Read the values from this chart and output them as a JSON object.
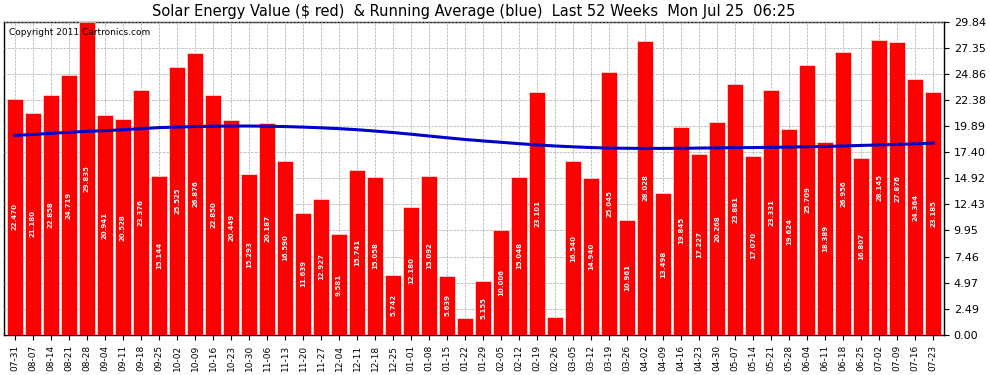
{
  "title": "Solar Energy Value ($ red)  & Running Average (blue)  Last 52 Weeks  Mon Jul 25  06:25",
  "copyright": "Copyright 2011 Cartronics.com",
  "bar_color": "#ff0000",
  "line_color": "#0000cc",
  "background_color": "#ffffff",
  "grid_color": "#aaaaaa",
  "bar_edge_color": "#ffffff",
  "ylim": [
    0,
    29.84
  ],
  "yticks": [
    0.0,
    2.49,
    4.97,
    7.46,
    9.95,
    12.43,
    14.92,
    17.4,
    19.89,
    22.38,
    24.86,
    27.35,
    29.84
  ],
  "categories": [
    "07-31",
    "08-07",
    "08-14",
    "08-21",
    "08-28",
    "09-04",
    "09-11",
    "09-18",
    "09-25",
    "10-02",
    "10-09",
    "10-16",
    "10-23",
    "10-30",
    "11-06",
    "11-13",
    "11-20",
    "11-27",
    "12-04",
    "12-11",
    "12-18",
    "12-25",
    "01-01",
    "01-08",
    "01-15",
    "01-22",
    "01-29",
    "02-05",
    "02-12",
    "02-19",
    "02-26",
    "03-05",
    "03-12",
    "03-19",
    "03-26",
    "04-02",
    "04-09",
    "04-16",
    "04-23",
    "04-30",
    "05-07",
    "05-14",
    "05-21",
    "05-28",
    "06-04",
    "06-11",
    "06-18",
    "06-25",
    "07-02",
    "07-09",
    "07-16",
    "07-23"
  ],
  "values": [
    22.47,
    21.18,
    22.858,
    24.719,
    29.835,
    20.941,
    20.528,
    23.376,
    15.144,
    25.525,
    26.876,
    22.85,
    20.449,
    15.293,
    20.187,
    16.59,
    11.639,
    12.927,
    9.581,
    15.741,
    15.058,
    5.742,
    12.18,
    15.092,
    5.639,
    1.577,
    5.155,
    10.006,
    15.048,
    23.101,
    1.707,
    16.54,
    14.94,
    25.045,
    10.961,
    28.028,
    13.498,
    19.845,
    17.227,
    20.268,
    23.881,
    17.07,
    23.331,
    19.624,
    25.709,
    18.389,
    26.956,
    16.807,
    28.145,
    27.876,
    24.364,
    23.185
  ],
  "running_avg": [
    19.0,
    19.1,
    19.2,
    19.3,
    19.4,
    19.45,
    19.55,
    19.65,
    19.75,
    19.8,
    19.85,
    19.88,
    19.9,
    19.9,
    19.88,
    19.85,
    19.8,
    19.73,
    19.65,
    19.55,
    19.42,
    19.28,
    19.12,
    18.95,
    18.78,
    18.62,
    18.48,
    18.35,
    18.22,
    18.1,
    18.0,
    17.92,
    17.85,
    17.8,
    17.78,
    17.77,
    17.77,
    17.78,
    17.8,
    17.82,
    17.84,
    17.85,
    17.87,
    17.9,
    17.93,
    17.95,
    18.0,
    18.05,
    18.1,
    18.15,
    18.2,
    18.27
  ]
}
